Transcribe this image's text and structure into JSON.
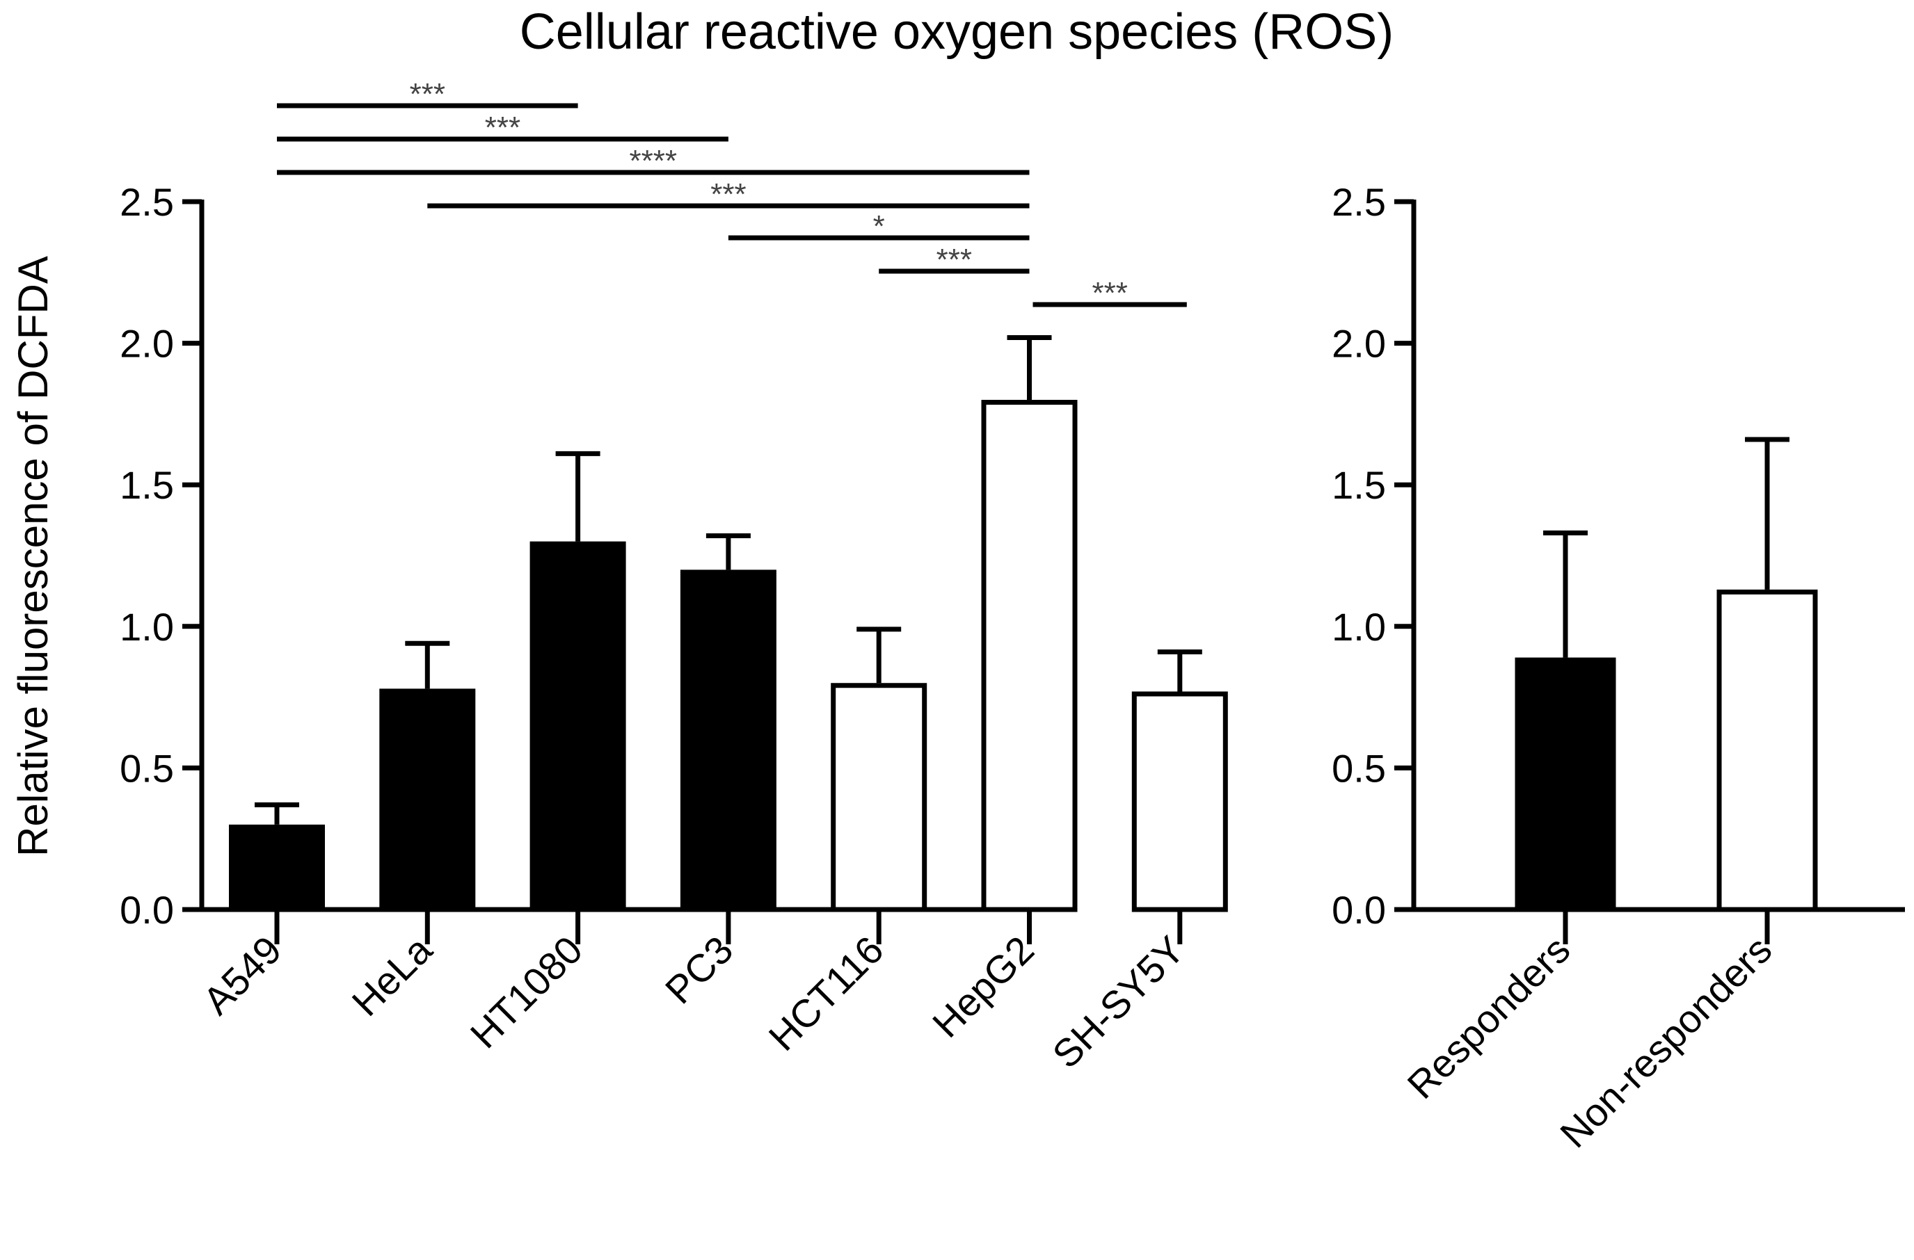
{
  "chart_data": {
    "title": "Cellular reactive oxygen species (ROS)",
    "ylabel": "Relative fluorescence of DCFDA",
    "ylim": [
      0,
      2.5
    ],
    "yticks": [
      "0.0",
      "0.5",
      "1.0",
      "1.5",
      "2.0",
      "2.5"
    ],
    "panels": [
      {
        "type": "bar",
        "categories": [
          "A549",
          "HeLa",
          "HT1080",
          "PC3",
          "HCT116",
          "HepG2",
          "SH-SY5Y"
        ],
        "values": [
          0.3,
          0.78,
          1.3,
          1.2,
          0.8,
          1.8,
          0.77
        ],
        "error_upper": [
          0.37,
          0.94,
          1.61,
          1.32,
          0.99,
          2.02,
          0.91
        ],
        "fill": [
          "black",
          "black",
          "black",
          "black",
          "white",
          "white",
          "white"
        ],
        "significance": [
          {
            "from": "A549",
            "to": "HT1080",
            "label": "***"
          },
          {
            "from": "A549",
            "to": "PC3",
            "label": "***"
          },
          {
            "from": "A549",
            "to": "HepG2",
            "label": "****"
          },
          {
            "from": "HeLa",
            "to": "HepG2",
            "label": "***"
          },
          {
            "from": "PC3",
            "to": "HepG2",
            "label": "*"
          },
          {
            "from": "HCT116",
            "to": "HepG2",
            "label": "***"
          },
          {
            "from": "HepG2",
            "to": "SH-SY5Y",
            "label": "***"
          }
        ]
      },
      {
        "type": "bar",
        "categories": [
          "Responders",
          "Non-responders"
        ],
        "values": [
          0.89,
          1.13
        ],
        "error_upper": [
          1.33,
          1.66
        ],
        "fill": [
          "black",
          "white"
        ]
      }
    ]
  }
}
